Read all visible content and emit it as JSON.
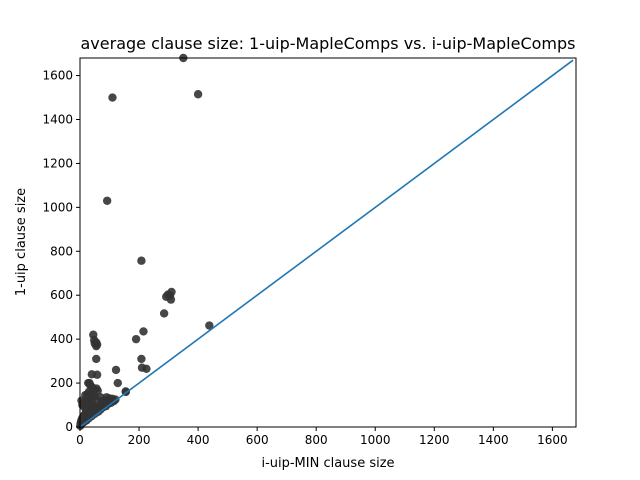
{
  "chart_data": {
    "type": "scatter",
    "title": "average clause size: 1-uip-MapleComps vs. i-uip-MapleComps",
    "xlabel": "i-uip-MIN clause size",
    "ylabel": "1-uip clause size",
    "xlim": [
      0,
      1680
    ],
    "ylim": [
      0,
      1680
    ],
    "xticks": [
      0,
      200,
      400,
      600,
      800,
      1000,
      1200,
      1400,
      1600
    ],
    "yticks": [
      0,
      200,
      400,
      600,
      800,
      1000,
      1200,
      1400,
      1600
    ],
    "grid": false,
    "legend": "none",
    "point_color": "#333333",
    "line_color": "#1f77b4",
    "reference_line": {
      "x": [
        0,
        1670
      ],
      "y": [
        0,
        1670
      ]
    },
    "points": [
      [
        350,
        1680
      ],
      [
        110,
        1500
      ],
      [
        400,
        1515
      ],
      [
        92,
        1030
      ],
      [
        208,
        757
      ],
      [
        310,
        615
      ],
      [
        298,
        603
      ],
      [
        305,
        598
      ],
      [
        308,
        580
      ],
      [
        292,
        593
      ],
      [
        285,
        517
      ],
      [
        438,
        462
      ],
      [
        215,
        435
      ],
      [
        190,
        400
      ],
      [
        45,
        420
      ],
      [
        48,
        395
      ],
      [
        55,
        385
      ],
      [
        58,
        375
      ],
      [
        55,
        368
      ],
      [
        50,
        380
      ],
      [
        55,
        310
      ],
      [
        208,
        310
      ],
      [
        210,
        270
      ],
      [
        225,
        265
      ],
      [
        122,
        260
      ],
      [
        40,
        240
      ],
      [
        58,
        238
      ],
      [
        128,
        200
      ],
      [
        28,
        200
      ],
      [
        35,
        190
      ],
      [
        42,
        180
      ],
      [
        56,
        175
      ],
      [
        48,
        170
      ],
      [
        30,
        160
      ],
      [
        60,
        165
      ],
      [
        155,
        160
      ],
      [
        155,
        162
      ],
      [
        25,
        150
      ],
      [
        18,
        145
      ],
      [
        35,
        140
      ],
      [
        50,
        140
      ],
      [
        70,
        135
      ],
      [
        90,
        135
      ],
      [
        100,
        130
      ],
      [
        110,
        128
      ],
      [
        120,
        125
      ],
      [
        115,
        118
      ],
      [
        105,
        110
      ],
      [
        95,
        105
      ],
      [
        80,
        100
      ],
      [
        65,
        95
      ],
      [
        55,
        90
      ],
      [
        45,
        85
      ],
      [
        35,
        80
      ],
      [
        28,
        75
      ],
      [
        25,
        70
      ],
      [
        20,
        65
      ],
      [
        18,
        60
      ],
      [
        15,
        55
      ],
      [
        12,
        50
      ],
      [
        10,
        45
      ],
      [
        8,
        40
      ],
      [
        6,
        35
      ],
      [
        5,
        30
      ],
      [
        4,
        25
      ],
      [
        3,
        20
      ],
      [
        2,
        15
      ],
      [
        2,
        10
      ],
      [
        1,
        5
      ],
      [
        5,
        120
      ],
      [
        8,
        100
      ],
      [
        12,
        110
      ],
      [
        20,
        120
      ],
      [
        25,
        105
      ],
      [
        30,
        115
      ],
      [
        38,
        125
      ],
      [
        42,
        100
      ],
      [
        60,
        120
      ],
      [
        75,
        115
      ],
      [
        85,
        120
      ],
      [
        100,
        115
      ],
      [
        62,
        70
      ],
      [
        70,
        80
      ],
      [
        78,
        90
      ],
      [
        88,
        95
      ],
      [
        40,
        50
      ],
      [
        30,
        40
      ],
      [
        22,
        30
      ],
      [
        15,
        25
      ],
      [
        10,
        20
      ],
      [
        50,
        60
      ],
      [
        55,
        75
      ],
      [
        45,
        65
      ],
      [
        35,
        55
      ],
      [
        32,
        200
      ],
      [
        44,
        150
      ],
      [
        28,
        130
      ],
      [
        15,
        90
      ],
      [
        20,
        95
      ],
      [
        40,
        110
      ]
    ]
  }
}
